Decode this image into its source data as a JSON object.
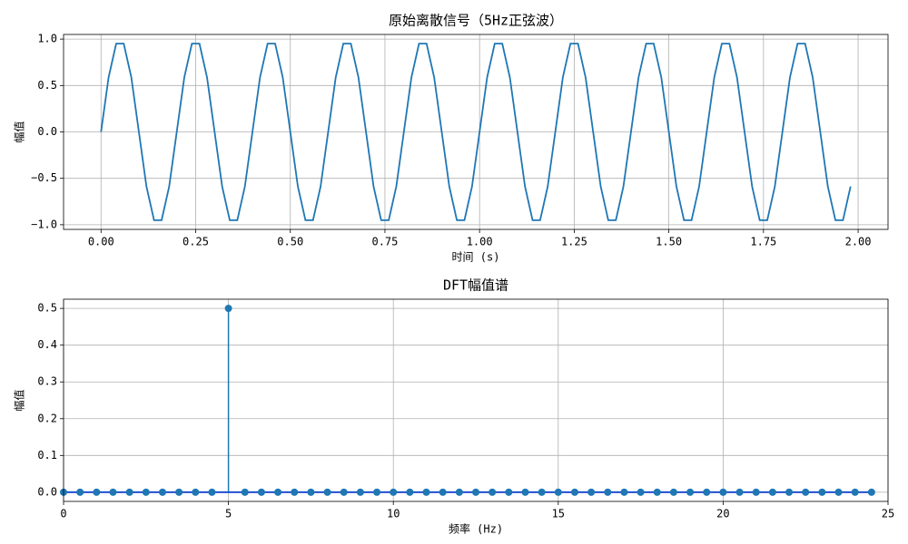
{
  "chart_data": [
    {
      "type": "line",
      "title": "原始离散信号（5Hz正弦波）",
      "x_label": "时间 (s)",
      "y_label": "幅值",
      "color": "#1f77b4",
      "grid": true,
      "x": [
        0,
        0.02,
        0.04,
        0.06,
        0.08,
        0.1,
        0.12,
        0.14,
        0.16,
        0.18,
        0.2,
        0.22,
        0.24,
        0.26,
        0.28,
        0.3,
        0.32,
        0.34,
        0.36,
        0.38,
        0.4,
        0.42,
        0.44,
        0.46,
        0.48,
        0.5,
        0.52,
        0.54,
        0.56,
        0.58,
        0.6,
        0.62,
        0.64,
        0.66,
        0.68,
        0.7,
        0.72,
        0.74,
        0.76,
        0.78,
        0.8,
        0.82,
        0.84,
        0.86,
        0.88,
        0.9,
        0.92,
        0.94,
        0.96,
        0.98,
        1.0,
        1.02,
        1.04,
        1.06,
        1.08,
        1.1,
        1.12,
        1.14,
        1.16,
        1.18,
        1.2,
        1.22,
        1.24,
        1.26,
        1.28,
        1.3,
        1.32,
        1.34,
        1.36,
        1.38,
        1.4,
        1.42,
        1.44,
        1.46,
        1.48,
        1.5,
        1.52,
        1.54,
        1.56,
        1.58,
        1.6,
        1.62,
        1.64,
        1.66,
        1.68,
        1.7,
        1.72,
        1.74,
        1.76,
        1.78,
        1.8,
        1.82,
        1.84,
        1.86,
        1.88,
        1.9,
        1.92,
        1.94,
        1.96,
        1.98
      ],
      "values": [
        0,
        0.588,
        0.951,
        0.951,
        0.588,
        0,
        -0.588,
        -0.951,
        -0.951,
        -0.588,
        0,
        0.588,
        0.951,
        0.951,
        0.588,
        0,
        -0.588,
        -0.951,
        -0.951,
        -0.588,
        0,
        0.588,
        0.951,
        0.951,
        0.588,
        0,
        -0.588,
        -0.951,
        -0.951,
        -0.588,
        0,
        0.588,
        0.951,
        0.951,
        0.588,
        0,
        -0.588,
        -0.951,
        -0.951,
        -0.588,
        0,
        0.588,
        0.951,
        0.951,
        0.588,
        0,
        -0.588,
        -0.951,
        -0.951,
        -0.588,
        0,
        0.588,
        0.951,
        0.951,
        0.588,
        0,
        -0.588,
        -0.951,
        -0.951,
        -0.588,
        0,
        0.588,
        0.951,
        0.951,
        0.588,
        0,
        -0.588,
        -0.951,
        -0.951,
        -0.588,
        0,
        0.588,
        0.951,
        0.951,
        0.588,
        0,
        -0.588,
        -0.951,
        -0.951,
        -0.588,
        0,
        0.588,
        0.951,
        0.951,
        0.588,
        0,
        -0.588,
        -0.951,
        -0.951,
        -0.588,
        0,
        0.588,
        0.951,
        0.951,
        0.588,
        0,
        -0.588,
        -0.951,
        -0.951,
        -0.588
      ],
      "xlim": [
        -0.099,
        2.079
      ],
      "ylim": [
        -1.05,
        1.05
      ],
      "xticks": [
        {
          "value": 0,
          "label": "0.00"
        },
        {
          "value": 0.25,
          "label": "0.25"
        },
        {
          "value": 0.5,
          "label": "0.50"
        },
        {
          "value": 0.75,
          "label": "0.75"
        },
        {
          "value": 1,
          "label": "1.00"
        },
        {
          "value": 1.25,
          "label": "1.25"
        },
        {
          "value": 1.5,
          "label": "1.50"
        },
        {
          "value": 1.75,
          "label": "1.75"
        },
        {
          "value": 2,
          "label": "2.00"
        }
      ],
      "yticks": [
        {
          "value": -1,
          "label": "−1.0"
        },
        {
          "value": -0.5,
          "label": "−0.5"
        },
        {
          "value": 0,
          "label": "0.0"
        },
        0.5,
        {
          "value": 1,
          "label": "1.0"
        }
      ]
    },
    {
      "type": "stem",
      "title": "DFT幅值谱",
      "x_label": "频率 (Hz)",
      "y_label": "幅值",
      "color": "#1f77b4",
      "baseline_color": "#0b3fd0",
      "grid": true,
      "x": [
        0,
        0.5,
        1,
        1.5,
        2,
        2.5,
        3,
        3.5,
        4,
        4.5,
        5,
        5.5,
        6,
        6.5,
        7,
        7.5,
        8,
        8.5,
        9,
        9.5,
        10,
        10.5,
        11,
        11.5,
        12,
        12.5,
        13,
        13.5,
        14,
        14.5,
        15,
        15.5,
        16,
        16.5,
        17,
        17.5,
        18,
        18.5,
        19,
        19.5,
        20,
        20.5,
        21,
        21.5,
        22,
        22.5,
        23,
        23.5,
        24,
        24.5
      ],
      "values": [
        0,
        0,
        0,
        0,
        0,
        0,
        0,
        0,
        0,
        0,
        0.5,
        0,
        0,
        0,
        0,
        0,
        0,
        0,
        0,
        0,
        0,
        0,
        0,
        0,
        0,
        0,
        0,
        0,
        0,
        0,
        0,
        0,
        0,
        0,
        0,
        0,
        0,
        0,
        0,
        0,
        0,
        0,
        0,
        0,
        0,
        0,
        0,
        0,
        0,
        0
      ],
      "xlim": [
        0,
        25
      ],
      "ylim": [
        -0.025,
        0.525
      ],
      "xticks": [
        0,
        5,
        10,
        15,
        20,
        25
      ],
      "yticks": [
        {
          "value": 0,
          "label": "0.0"
        },
        0.1,
        0.2,
        0.3,
        0.4,
        0.5
      ]
    }
  ]
}
